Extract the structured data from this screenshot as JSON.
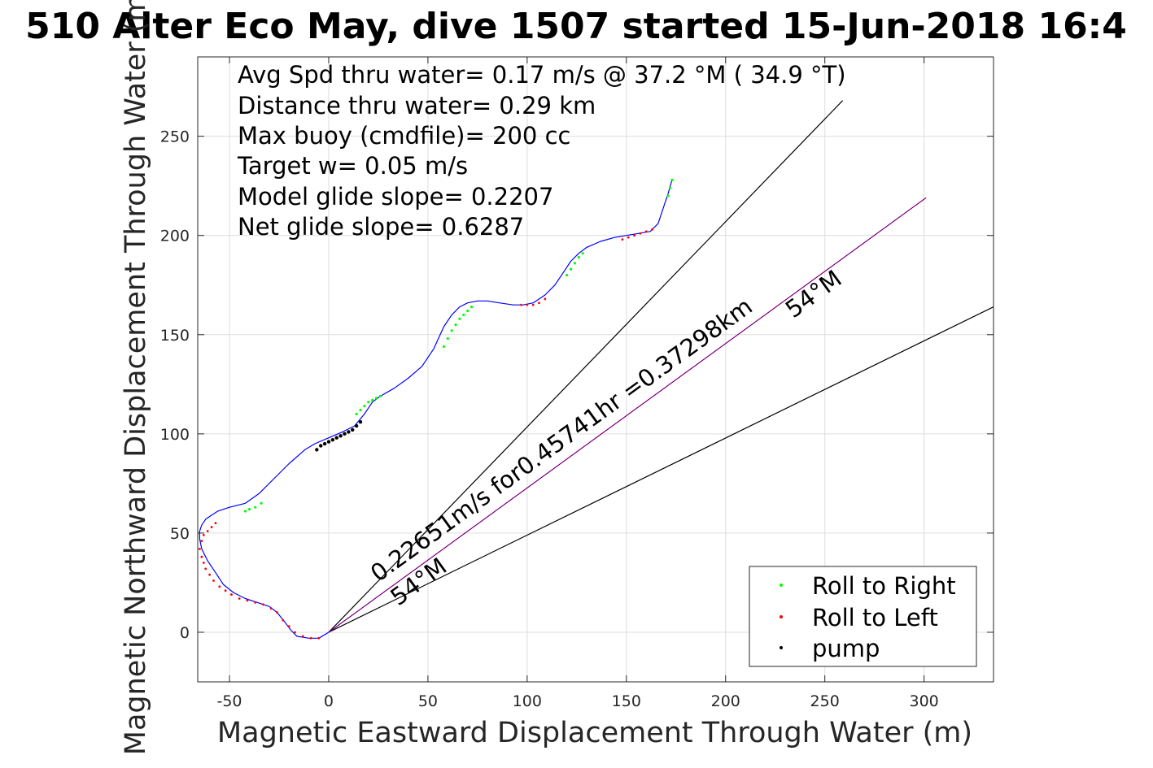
{
  "title": "510 Alter Eco May, dive 1507 started 15-Jun-2018 16:4",
  "chart_data": {
    "type": "line",
    "xlabel": "Magnetic Eastward Displacement Through Water (m)",
    "ylabel": "Magnetic Northward Displacement Through Water (m)",
    "xlim": [
      -66,
      335
    ],
    "ylim": [
      -25,
      290
    ],
    "xticks": [
      -50,
      0,
      50,
      100,
      150,
      200,
      250,
      300
    ],
    "yticks": [
      0,
      50,
      100,
      150,
      200,
      250
    ],
    "xtick_labels": [
      "-50",
      "0",
      "50",
      "100",
      "150",
      "200",
      "250",
      "300"
    ],
    "ytick_labels": [
      "0",
      "50",
      "100",
      "150",
      "200",
      "250"
    ],
    "grid": true,
    "info_text": [
      "Avg Spd thru water=  0.17 m/s @  37.2 °M ( 34.9 °T)",
      "Distance thru water=  0.29 km",
      "Max buoy (cmdfile)= 200 cc",
      "Target w= 0.05 m/s",
      "Model glide slope= 0.2207",
      "Net glide slope= 0.6287"
    ],
    "track": {
      "color": "#0000ff",
      "x": [
        0,
        -5,
        -10,
        -16,
        -19,
        -22,
        -26,
        -30,
        -36,
        -42,
        -48,
        -53,
        -57,
        -61,
        -64,
        -65,
        -65,
        -64,
        -62,
        -59,
        -56,
        -50,
        -42,
        -35,
        -28,
        -20,
        -12,
        -7,
        0,
        7,
        13,
        18,
        22,
        26,
        33,
        40,
        47,
        53,
        58,
        62,
        66,
        70,
        75,
        80,
        86,
        93,
        98,
        103,
        109,
        114,
        118,
        122,
        126,
        130,
        137,
        144,
        150,
        156,
        162,
        166,
        169,
        171,
        173
      ],
      "y": [
        0,
        -3,
        -3,
        -2,
        1,
        5,
        10,
        13,
        15,
        17,
        20,
        24,
        30,
        36,
        42,
        47,
        51,
        54,
        57,
        59,
        61,
        63,
        65,
        70,
        77,
        85,
        92,
        95,
        98,
        101,
        104,
        110,
        116,
        119,
        123,
        128,
        134,
        143,
        154,
        160,
        164,
        166,
        167,
        167,
        166,
        165,
        165,
        166,
        170,
        175,
        181,
        187,
        191,
        194,
        197,
        199,
        200,
        201,
        202,
        206,
        215,
        221,
        228
      ]
    },
    "roll_right": {
      "label": "Roll to Right",
      "color": "#00ff00",
      "x": [
        -42,
        -40,
        -37,
        -34,
        14,
        16,
        18,
        20,
        22,
        24,
        26,
        58,
        60,
        62,
        64,
        66,
        68,
        70,
        72,
        120,
        122,
        124,
        126,
        128,
        171,
        172,
        173
      ],
      "y": [
        61,
        62,
        63,
        65,
        110,
        112,
        114,
        116,
        117,
        118,
        119,
        144,
        148,
        152,
        155,
        158,
        160,
        162,
        164,
        180,
        183,
        186,
        189,
        191,
        220,
        224,
        228
      ]
    },
    "roll_left": {
      "label": "Roll to Left",
      "color": "#ff0000",
      "x": [
        -5,
        -9,
        -13,
        -17,
        -20,
        -23,
        -26,
        -29,
        -33,
        -37,
        -41,
        -45,
        -49,
        -52,
        -55,
        -58,
        -60,
        -62,
        -63,
        -64,
        -65,
        -64,
        -63,
        -61,
        -59,
        -57,
        97,
        100,
        103,
        106,
        109,
        148,
        151,
        154,
        157,
        160,
        163
      ],
      "y": [
        -3,
        -3,
        -2,
        0,
        3,
        6,
        10,
        12,
        14,
        15,
        16,
        17,
        19,
        21,
        23,
        26,
        29,
        32,
        35,
        38,
        42,
        46,
        49,
        51,
        53,
        55,
        165,
        165,
        165,
        166,
        168,
        198,
        199,
        200,
        201,
        202,
        203
      ]
    },
    "pump": {
      "label": "pump",
      "color": "#000000",
      "x": [
        -6,
        -4,
        -2,
        0,
        2,
        4,
        6,
        8,
        10,
        12,
        14,
        16
      ],
      "y": [
        92,
        94,
        95,
        96,
        97,
        98,
        99,
        100,
        101,
        102,
        104,
        106
      ]
    },
    "lines": [
      {
        "color": "#000000",
        "x": [
          0,
          259
        ],
        "y": [
          0,
          268
        ]
      },
      {
        "color": "#000000",
        "x": [
          0,
          335
        ],
        "y": [
          0,
          164
        ]
      },
      {
        "color": "#ff00ff",
        "x": [
          0,
          301
        ],
        "y": [
          0,
          219
        ]
      },
      {
        "color": "#000000",
        "x": [
          0,
          301
        ],
        "y": [
          0,
          219
        ]
      }
    ],
    "annotations": [
      {
        "text": "0.22651m/s for0.45741hr =0.37298km",
        "x": 25,
        "y": 25,
        "angle_deg": 36
      },
      {
        "text": "54°M",
        "x": 234,
        "y": 158,
        "angle_deg": 36
      },
      {
        "text": "54°M",
        "x": 35,
        "y": 13,
        "angle_deg": 36
      }
    ],
    "legend": {
      "position": "bottom-right",
      "entries": [
        {
          "label": "Roll to Right",
          "color": "#00ff00"
        },
        {
          "label": "Roll to Left",
          "color": "#ff0000"
        },
        {
          "label": "pump",
          "color": "#000000"
        }
      ]
    }
  }
}
